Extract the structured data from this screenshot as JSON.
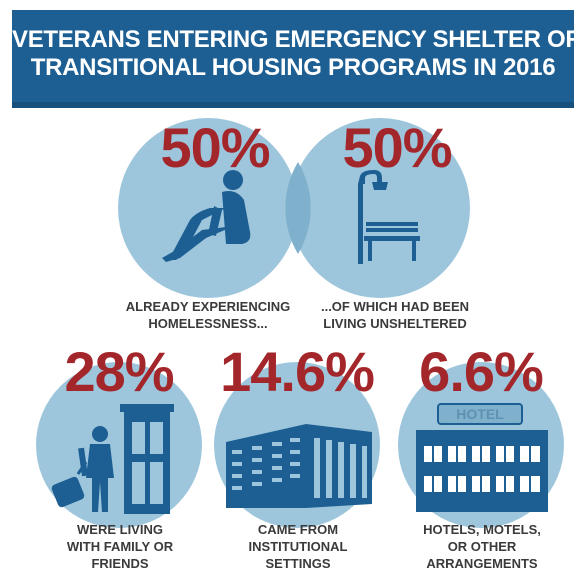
{
  "header": {
    "title_line1": "VETERANS ENTERING EMERGENCY SHELTER OR",
    "title_line2": "TRANSITIONAL HOUSING PROGRAMS IN 2016",
    "background_color": "#1e5f93"
  },
  "stats": [
    {
      "value": "50%",
      "caption_line1": "ALREADY EXPERIENCING",
      "caption_line2": "HOMELESSNESS...",
      "icon": "sitting-person-icon"
    },
    {
      "value": "50%",
      "caption_line1": "...OF WHICH HAD BEEN",
      "caption_line2": "LIVING UNSHELTERED",
      "icon": "park-bench-lamp-icon"
    },
    {
      "value": "28%",
      "caption_line1": "WERE LIVING",
      "caption_line2": "WITH FAMILY OR",
      "caption_line3": "FRIENDS",
      "icon": "traveler-door-icon"
    },
    {
      "value": "14.6%",
      "caption_line1": "CAME FROM",
      "caption_line2": "INSTITUTIONAL",
      "caption_line3": "SETTINGS",
      "icon": "institution-building-icon"
    },
    {
      "value": "6.6%",
      "caption_line1": "HOTELS, MOTELS,",
      "caption_line2": "OR OTHER",
      "caption_line3": "ARRANGEMENTS",
      "icon": "hotel-icon",
      "sign_text": "HOTEL"
    }
  ],
  "colors": {
    "accent_red": "#a3262b",
    "circle_blue": "#9dc6dc",
    "icon_blue": "#1e5f93"
  }
}
